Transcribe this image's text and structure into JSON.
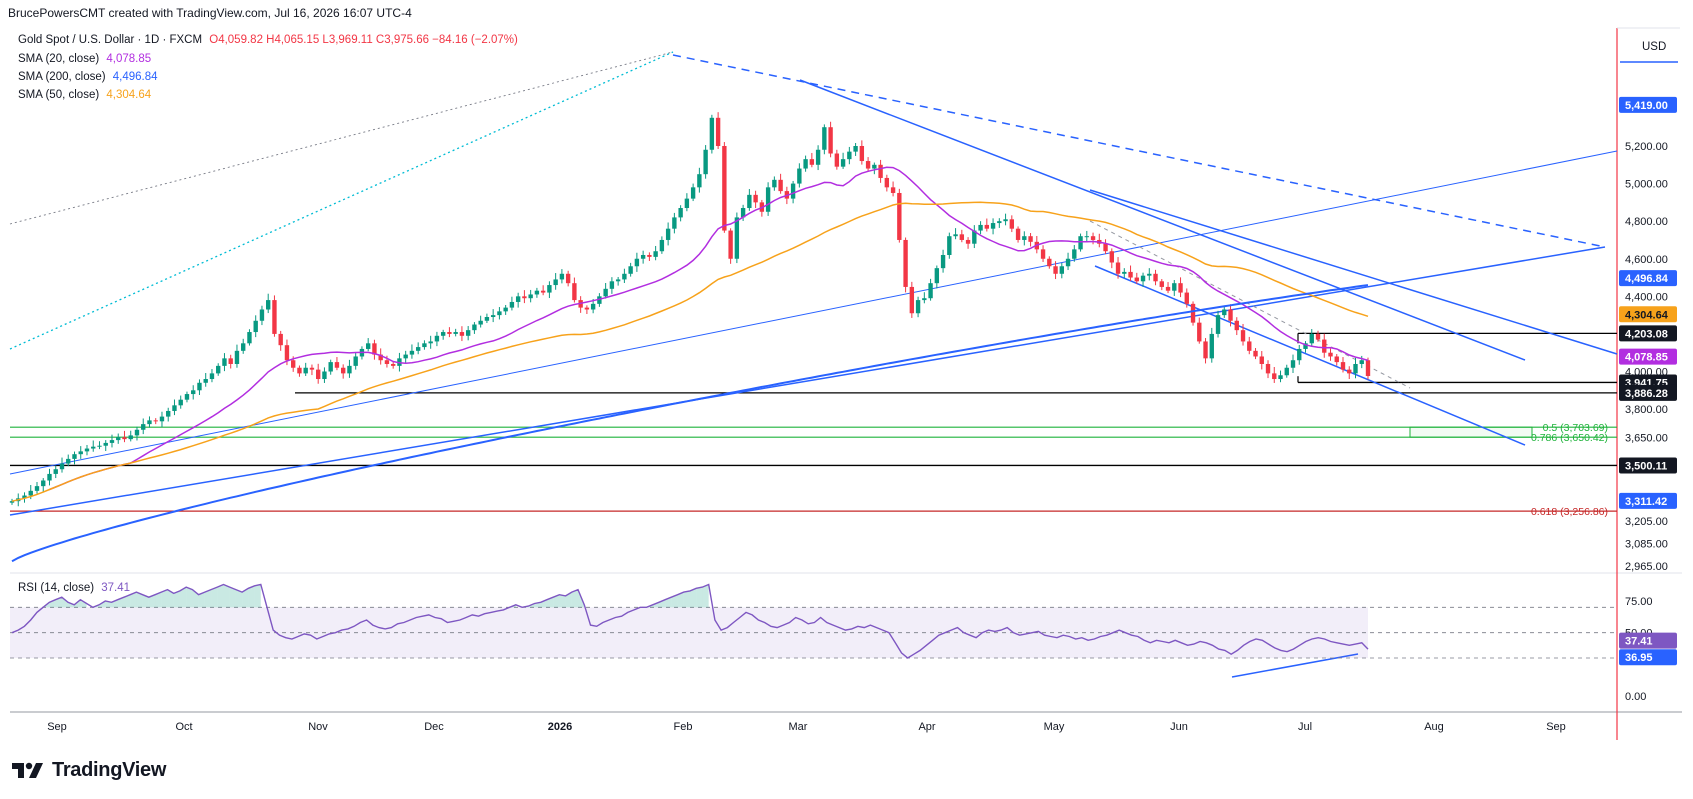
{
  "header": {
    "caption": "BrucePowersCMT created with TradingView.com, Jul 16, 2026 16:07 UTC-4"
  },
  "legend": {
    "symbol": "Gold Spot / U.S. Dollar · 1D · FXCM",
    "ohlc": "O4,059.82 H4,065.15 L3,969.11 C3,975.66 −84.16 (−2.07%)",
    "sma20_label": "SMA (20, close)",
    "sma20_value": "4,078.85",
    "sma200_label": "SMA (200, close)",
    "sma200_value": "4,496.84",
    "sma50_label": "SMA (50, close)",
    "sma50_value": "4,304.64",
    "rsi_label": "RSI (14, close)",
    "rsi_value": "37.41"
  },
  "footer": {
    "brand": "TradingView"
  },
  "colors": {
    "up": "#089981",
    "down": "#f23645",
    "sma20": "#b22ee0",
    "sma200": "#2962ff",
    "sma50": "#f7a21b",
    "trend": "#2962ff",
    "support": "#000000",
    "fib_green": "#1fb33b",
    "fib_red": "#c62828",
    "rsi": "#7e57c2",
    "cyan": "#00bcd4"
  },
  "chart_data": {
    "type": "candlestick",
    "currency": "USD",
    "x_ticks": [
      "Sep",
      "Oct",
      "Nov",
      "Dec",
      "2026",
      "Feb",
      "Mar",
      "Apr",
      "May",
      "Jun",
      "Jul",
      "Aug",
      "Sep"
    ],
    "y_ticks": [
      "5,200.00",
      "5,000.00",
      "4,800.00",
      "4,600.00",
      "4,400.00",
      "4,000.00",
      "3,800.00",
      "3,650.00",
      "3,205.00",
      "3,085.00",
      "2,965.00"
    ],
    "price_labels": [
      {
        "text": "5,419.00",
        "value": 5419.0,
        "style": "blue"
      },
      {
        "text": "4,496.84",
        "value": 4496.84,
        "style": "blue"
      },
      {
        "text": "4,304.64",
        "value": 4304.64,
        "style": "orange"
      },
      {
        "text": "4,203.08",
        "value": 4203.08,
        "style": "black"
      },
      {
        "text": "4,078.85",
        "value": 4078.85,
        "style": "purple"
      },
      {
        "text": "3,941.75",
        "value": 3941.75,
        "style": "black"
      },
      {
        "text": "3,886.28",
        "value": 3886.28,
        "style": "black"
      },
      {
        "text": "3,500.11",
        "value": 3500.11,
        "style": "black"
      },
      {
        "text": "3,311.42",
        "value": 3311.42,
        "style": "blue"
      }
    ],
    "horizontal_levels": [
      {
        "value": 3886.28,
        "color": "#000000"
      },
      {
        "value": 3500.11,
        "color": "#000000"
      },
      {
        "value": 3703.69,
        "color": "#1fb33b"
      },
      {
        "value": 3650.42,
        "color": "#1fb33b"
      },
      {
        "value": 3256.86,
        "color": "#c62828"
      }
    ],
    "fib_labels": [
      {
        "text": "0.5 (3,703.69)",
        "value": 3703.69,
        "color": "#1fb33b"
      },
      {
        "text": "0.786 (3,650.42)",
        "value": 3650.42,
        "color": "#1fb33b"
      },
      {
        "text": "0.618 (3,256.86)",
        "value": 3256.86,
        "color": "#c62828"
      }
    ],
    "closes": [
      3310,
      3325,
      3340,
      3365,
      3390,
      3420,
      3455,
      3480,
      3510,
      3535,
      3560,
      3575,
      3590,
      3600,
      3605,
      3620,
      3635,
      3650,
      3640,
      3660,
      3690,
      3720,
      3740,
      3735,
      3760,
      3790,
      3820,
      3850,
      3880,
      3900,
      3940,
      3960,
      3990,
      4030,
      4070,
      4040,
      4110,
      4150,
      4210,
      4270,
      4330,
      4380,
      4200,
      4140,
      4060,
      4020,
      3990,
      4020,
      4010,
      3960,
      4000,
      4050,
      4020,
      3990,
      4030,
      4080,
      4120,
      4150,
      4090,
      4060,
      4040,
      4030,
      4070,
      4090,
      4110,
      4130,
      4150,
      4160,
      4190,
      4210,
      4200,
      4210,
      4190,
      4220,
      4250,
      4270,
      4290,
      4300,
      4320,
      4340,
      4370,
      4400,
      4390,
      4410,
      4430,
      4420,
      4460,
      4490,
      4520,
      4470,
      4380,
      4340,
      4330,
      4360,
      4400,
      4440,
      4480,
      4490,
      4520,
      4560,
      4600,
      4620,
      4610,
      4640,
      4700,
      4760,
      4820,
      4870,
      4920,
      4980,
      5050,
      5180,
      5350,
      5200,
      4750,
      4600,
      4820,
      4870,
      4940,
      4900,
      4850,
      4980,
      5020,
      4960,
      4920,
      5000,
      5080,
      5130,
      5100,
      5180,
      5300,
      5160,
      5090,
      5130,
      5170,
      5200,
      5120,
      5080,
      5100,
      5030,
      4980,
      4950,
      4700,
      4450,
      4310,
      4380,
      4390,
      4470,
      4550,
      4620,
      4720,
      4730,
      4700,
      4680,
      4750,
      4780,
      4760,
      4790,
      4800,
      4810,
      4760,
      4700,
      4720,
      4690,
      4650,
      4600,
      4560,
      4520,
      4560,
      4600,
      4650,
      4720,
      4720,
      4700,
      4680,
      4640,
      4580,
      4520,
      4530,
      4500,
      4480,
      4510,
      4520,
      4480,
      4450,
      4430,
      4470,
      4420,
      4360,
      4260,
      4160,
      4070,
      4200,
      4300,
      4330,
      4270,
      4220,
      4160,
      4110,
      4080,
      4040,
      3990,
      3960,
      3980,
      4020,
      4060,
      4120,
      4150,
      4200,
      4170,
      4100,
      4080,
      4050,
      4010,
      3990,
      4040,
      4060,
      3976
    ],
    "sma20_value": 4078.85,
    "sma50_value": 4304.64,
    "sma200_value": 4496.84,
    "rsi": {
      "y_ticks": [
        "75.00",
        "50.00",
        "0.00"
      ],
      "upper": 70,
      "lower": 30,
      "labels": [
        {
          "text": "37.41",
          "value": 37.41
        },
        {
          "text": "36.95",
          "value": 36.95
        }
      ],
      "values": [
        50,
        52,
        55,
        60,
        66,
        70,
        74,
        76,
        78,
        74,
        72,
        76,
        73,
        70,
        72,
        75,
        74,
        76,
        78,
        80,
        82,
        80,
        78,
        80,
        82,
        84,
        81,
        83,
        86,
        84,
        80,
        82,
        84,
        86,
        88,
        86,
        84,
        82,
        85,
        87,
        88,
        70,
        52,
        48,
        46,
        45,
        47,
        49,
        48,
        45,
        47,
        49,
        50,
        52,
        53,
        55,
        58,
        60,
        56,
        54,
        53,
        54,
        57,
        58,
        60,
        62,
        63,
        64,
        62,
        61,
        58,
        59,
        60,
        62,
        64,
        63,
        65,
        66,
        67,
        68,
        70,
        72,
        70,
        71,
        73,
        74,
        76,
        78,
        80,
        79,
        82,
        84,
        72,
        56,
        55,
        58,
        60,
        62,
        63,
        66,
        68,
        70,
        70,
        72,
        74,
        76,
        78,
        80,
        82,
        83,
        85,
        86,
        88,
        60,
        52,
        54,
        58,
        62,
        66,
        64,
        60,
        58,
        55,
        54,
        56,
        58,
        62,
        60,
        57,
        58,
        62,
        58,
        56,
        54,
        52,
        53,
        55,
        54,
        56,
        54,
        52,
        50,
        42,
        34,
        30,
        33,
        36,
        40,
        44,
        48,
        50,
        52,
        54,
        50,
        48,
        46,
        50,
        52,
        51,
        52,
        54,
        50,
        48,
        49,
        50,
        51,
        48,
        47,
        46,
        48,
        47,
        45,
        46,
        44,
        45,
        47,
        48,
        50,
        52,
        50,
        48,
        47,
        44,
        42,
        44,
        43,
        42,
        44,
        42,
        40,
        41,
        43,
        42,
        40,
        37,
        36,
        33,
        36,
        40,
        43,
        45,
        44,
        41,
        38,
        36,
        35,
        37,
        40,
        43,
        45,
        46,
        45,
        43,
        42,
        41,
        40,
        41,
        42,
        37
      ]
    }
  }
}
